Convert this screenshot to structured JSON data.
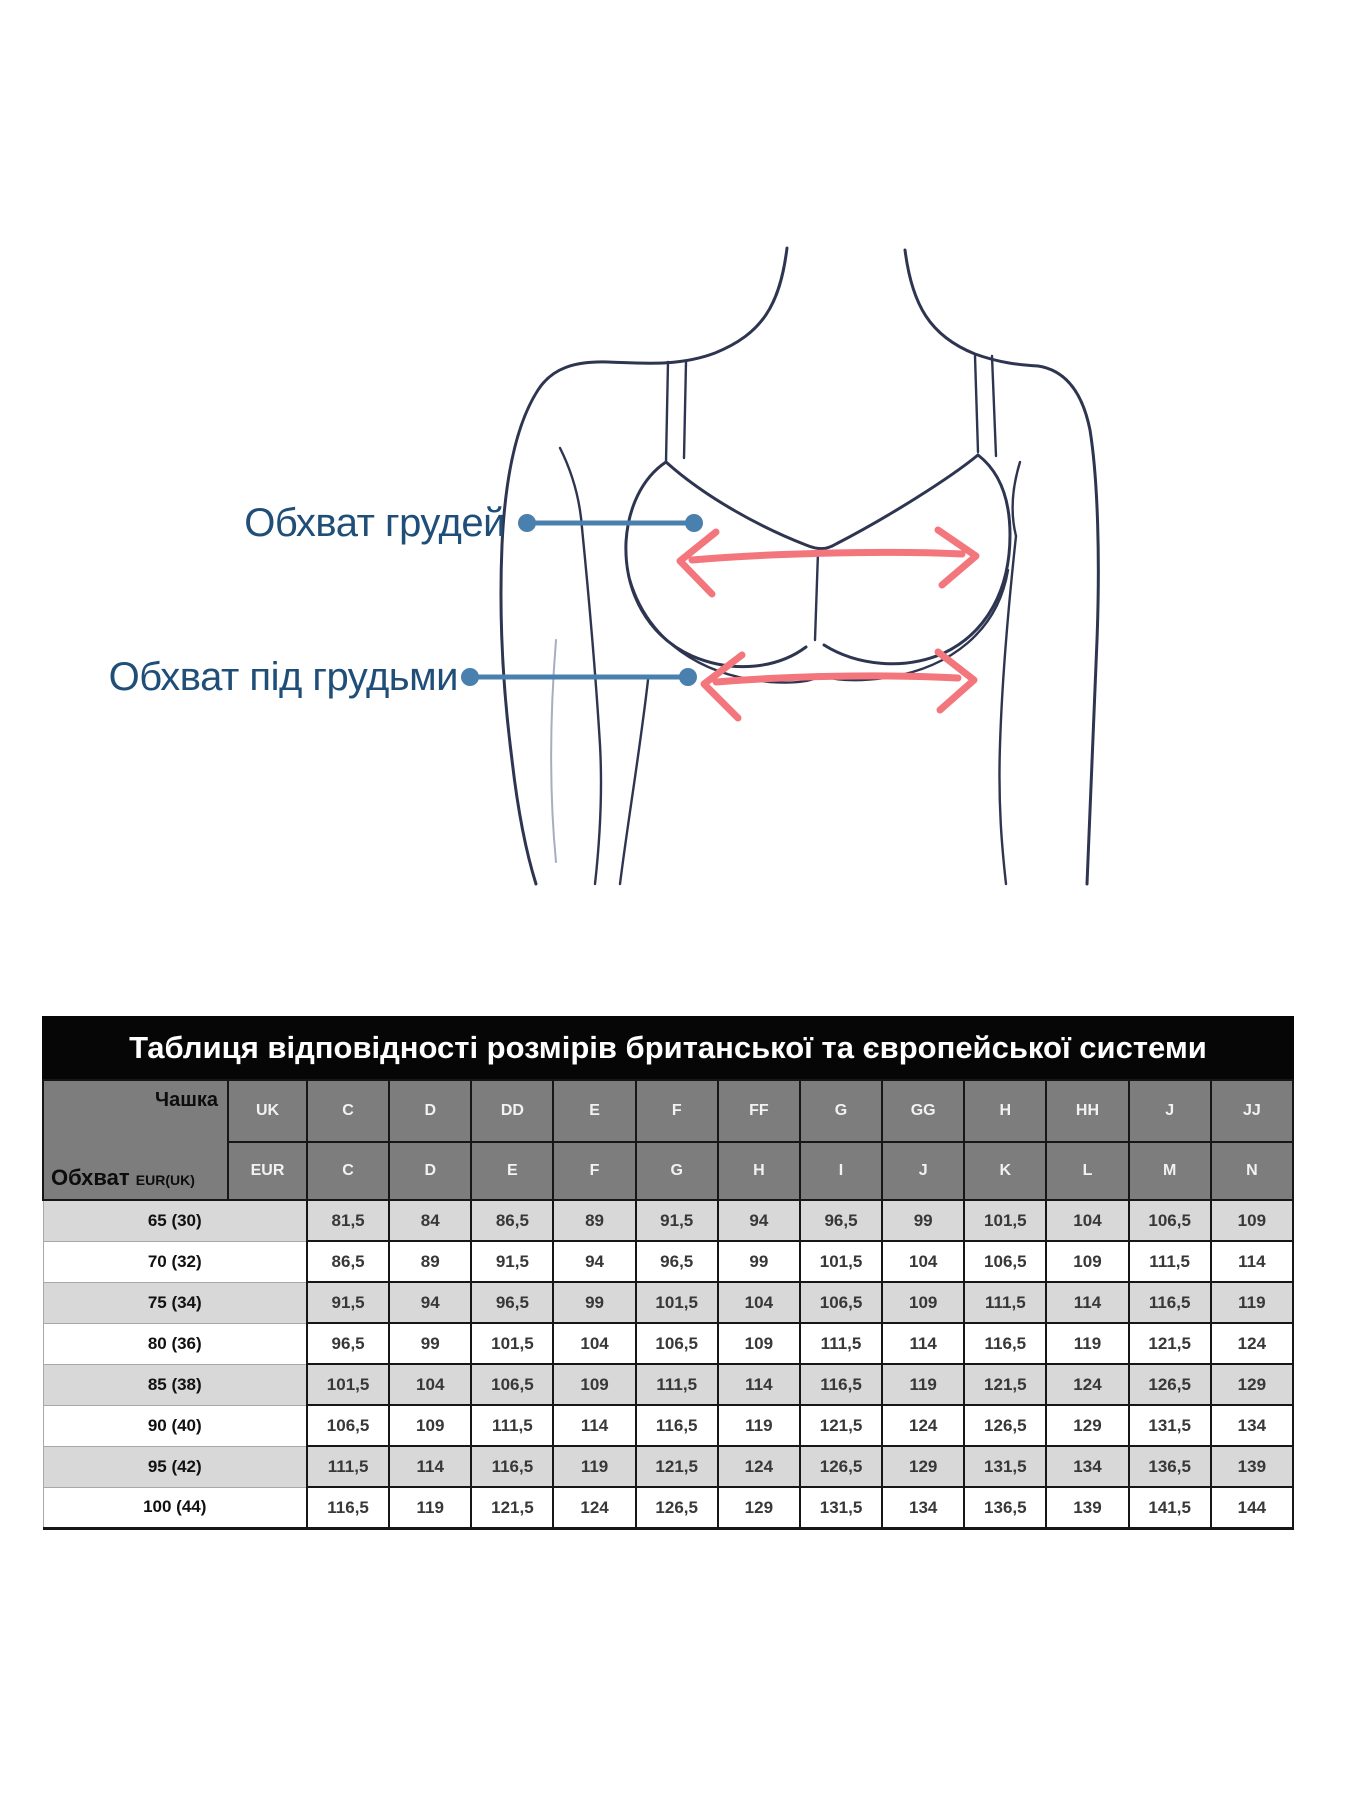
{
  "diagram": {
    "bust_label": "Обхват грудей",
    "underbust_label": "Обхват під грудьми"
  },
  "table": {
    "title": "Таблиця відповідності розмірів британської та європейської системи",
    "corner": {
      "cup_label": "Чашка",
      "band_label": "Обхват",
      "band_label_small": "EUR(UK)"
    },
    "uk_row_header": "UK",
    "eur_row_header": "EUR",
    "uk_cups": [
      "C",
      "D",
      "DD",
      "E",
      "F",
      "FF",
      "G",
      "GG",
      "H",
      "HH",
      "J",
      "JJ"
    ],
    "eur_cups": [
      "C",
      "D",
      "E",
      "F",
      "G",
      "H",
      "I",
      "J",
      "K",
      "L",
      "M",
      "N"
    ],
    "rows": [
      {
        "label": "65 (30)",
        "values": [
          "81,5",
          "84",
          "86,5",
          "89",
          "91,5",
          "94",
          "96,5",
          "99",
          "101,5",
          "104",
          "106,5",
          "109"
        ]
      },
      {
        "label": "70 (32)",
        "values": [
          "86,5",
          "89",
          "91,5",
          "94",
          "96,5",
          "99",
          "101,5",
          "104",
          "106,5",
          "109",
          "111,5",
          "114"
        ]
      },
      {
        "label": "75 (34)",
        "values": [
          "91,5",
          "94",
          "96,5",
          "99",
          "101,5",
          "104",
          "106,5",
          "109",
          "111,5",
          "114",
          "116,5",
          "119"
        ]
      },
      {
        "label": "80 (36)",
        "values": [
          "96,5",
          "99",
          "101,5",
          "104",
          "106,5",
          "109",
          "111,5",
          "114",
          "116,5",
          "119",
          "121,5",
          "124"
        ]
      },
      {
        "label": "85 (38)",
        "values": [
          "101,5",
          "104",
          "106,5",
          "109",
          "111,5",
          "114",
          "116,5",
          "119",
          "121,5",
          "124",
          "126,5",
          "129"
        ]
      },
      {
        "label": "90 (40)",
        "values": [
          "106,5",
          "109",
          "111,5",
          "114",
          "116,5",
          "119",
          "121,5",
          "124",
          "126,5",
          "129",
          "131,5",
          "134"
        ]
      },
      {
        "label": "95 (42)",
        "values": [
          "111,5",
          "114",
          "116,5",
          "119",
          "121,5",
          "124",
          "126,5",
          "129",
          "131,5",
          "134",
          "136,5",
          "139"
        ]
      },
      {
        "label": "100 (44)",
        "values": [
          "116,5",
          "119",
          "121,5",
          "124",
          "126,5",
          "129",
          "131,5",
          "134",
          "136,5",
          "139",
          "141,5",
          "144"
        ]
      }
    ]
  },
  "colors": {
    "label_blue": "#1f4e79",
    "callout_blue": "#4a80ae",
    "arrow_red": "#f3767c",
    "line_navy": "#2e3550",
    "header_gray": "#7d7d7d",
    "row_alt": "#d8d8d8",
    "title_bg": "#060606",
    "grid_dark": "#161616"
  }
}
